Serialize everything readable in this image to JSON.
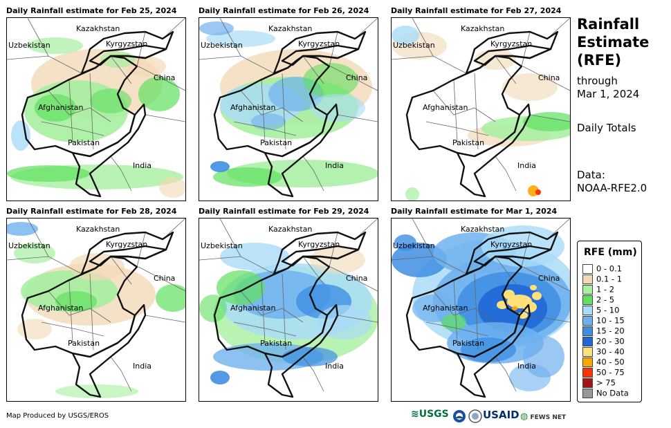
{
  "panels": [
    {
      "title": "Daily Rainfall estimate for Feb 25, 2024",
      "pattern": "feb25"
    },
    {
      "title": "Daily Rainfall estimate for Feb 26, 2024",
      "pattern": "feb26"
    },
    {
      "title": "Daily Rainfall estimate for Feb 27, 2024",
      "pattern": "feb27"
    },
    {
      "title": "Daily Rainfall estimate for Feb 28, 2024",
      "pattern": "feb28"
    },
    {
      "title": "Daily Rainfall estimate for Feb 29, 2024",
      "pattern": "feb29"
    },
    {
      "title": "Daily Rainfall estimate for Mar 1, 2024",
      "pattern": "mar1"
    }
  ],
  "map_labels": {
    "kazakhstan": "Kazakhstan",
    "uzbekistan": "Uzbekistan",
    "kyrgyzstan": "Kyrgyzstan",
    "china": "China",
    "afghanistan": "Afghanistan",
    "pakistan": "Pakistan",
    "india": "India"
  },
  "side": {
    "title_lines": [
      "Rainfall",
      "Estimate",
      "(RFE)"
    ],
    "through": "through",
    "date": "Mar 1, 2024",
    "totals": "Daily Totals",
    "data_label": "Data:",
    "data_source": "NOAA-RFE2.0"
  },
  "legend": {
    "title": "RFE (mm)",
    "items": [
      {
        "label": "0 - 0.1",
        "color": "#ffffff"
      },
      {
        "label": "0.1 - 1",
        "color": "#f2d9b6"
      },
      {
        "label": "1 - 2",
        "color": "#a6f0a0"
      },
      {
        "label": "2 - 5",
        "color": "#5fe05f"
      },
      {
        "label": "5 - 10",
        "color": "#a9dcf7"
      },
      {
        "label": "10 - 15",
        "color": "#6fb1ee"
      },
      {
        "label": "15 - 20",
        "color": "#3f8ee3"
      },
      {
        "label": "20 - 30",
        "color": "#1f66d6"
      },
      {
        "label": "30 - 40",
        "color": "#ffe07a"
      },
      {
        "label": "40 - 50",
        "color": "#ffa500"
      },
      {
        "label": "50 - 75",
        "color": "#ff3300"
      },
      {
        "label": "> 75",
        "color": "#a31515"
      },
      {
        "label": "No Data",
        "color": "#999999"
      }
    ]
  },
  "footer": {
    "credit": "Map Produced by USGS/EROS",
    "usgs": "USGS",
    "usaid": "USAID",
    "fewsnet": "FEWS NET"
  }
}
